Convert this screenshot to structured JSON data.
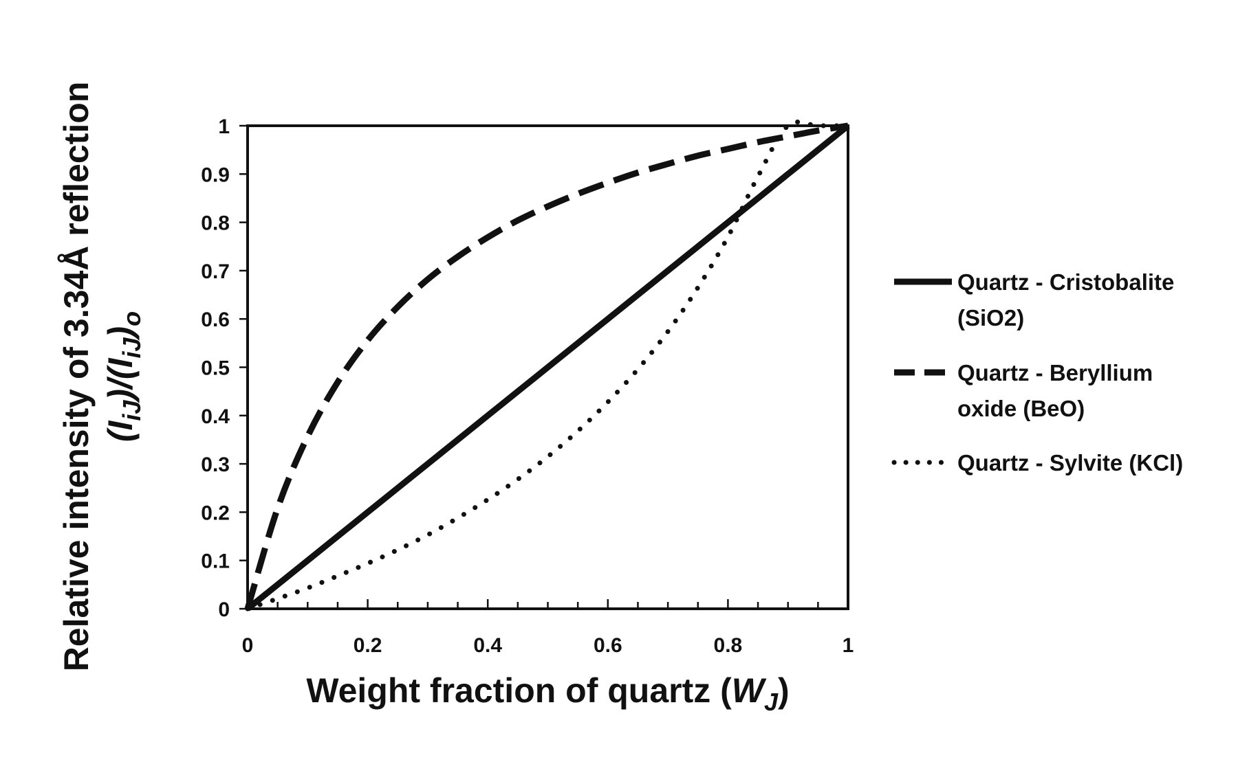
{
  "chart_data": {
    "type": "line",
    "title": "",
    "xlabel": "Weight fraction of quartz (W_J)",
    "xlabel_parts": [
      "Weight fraction of quartz (",
      "W",
      "J",
      ")"
    ],
    "ylabel_line1": "Relative intensity of 3.34Å reflection",
    "ylabel_line2_parts": [
      "(I",
      "iJ",
      ")/(I",
      "iJ",
      ")",
      "o"
    ],
    "xlim": [
      0,
      1
    ],
    "ylim": [
      0,
      1
    ],
    "x_ticks": [
      0,
      0.2,
      0.4,
      0.6,
      0.8,
      1
    ],
    "x_tick_labels": [
      "0",
      "0.2",
      "0.4",
      "0.6",
      "0.8",
      "1"
    ],
    "y_ticks": [
      0,
      0.1,
      0.2,
      0.3,
      0.4,
      0.5,
      0.6,
      0.7,
      0.8,
      0.9,
      1
    ],
    "y_tick_labels": [
      "0",
      "0.1",
      "0.2",
      "0.3",
      "0.4",
      "0.5",
      "0.6",
      "0.7",
      "0.8",
      "0.9",
      "1"
    ],
    "grid": false,
    "legend_position": "right",
    "x": [
      0,
      0.05,
      0.1,
      0.15,
      0.2,
      0.25,
      0.3,
      0.35,
      0.4,
      0.45,
      0.5,
      0.55,
      0.6,
      0.65,
      0.7,
      0.75,
      0.8,
      0.85,
      0.9,
      0.95,
      1
    ],
    "series": [
      {
        "name_lines": [
          "Quartz - Cristobalite",
          "(SiO2)"
        ],
        "style": "solid",
        "values": [
          0,
          0.05,
          0.1,
          0.15,
          0.2,
          0.25,
          0.3,
          0.35,
          0.4,
          0.45,
          0.5,
          0.55,
          0.6,
          0.65,
          0.7,
          0.75,
          0.8,
          0.85,
          0.9,
          0.95,
          1
        ]
      },
      {
        "name_lines": [
          "Quartz - Beryllium",
          "oxide (BeO)"
        ],
        "style": "dashed",
        "values": [
          0,
          0.208,
          0.357,
          0.469,
          0.556,
          0.625,
          0.682,
          0.729,
          0.769,
          0.804,
          0.833,
          0.859,
          0.882,
          0.903,
          0.921,
          0.938,
          0.952,
          0.966,
          0.978,
          0.99,
          1
        ]
      },
      {
        "name_lines": [
          "Quartz - Sylvite (KCl)"
        ],
        "style": "dotted",
        "values": [
          0,
          0.021,
          0.043,
          0.068,
          0.094,
          0.122,
          0.153,
          0.188,
          0.226,
          0.268,
          0.315,
          0.368,
          0.428,
          0.496,
          0.574,
          0.665,
          0.77,
          0.895,
          1.0,
          1.0,
          1
        ]
      }
    ]
  }
}
